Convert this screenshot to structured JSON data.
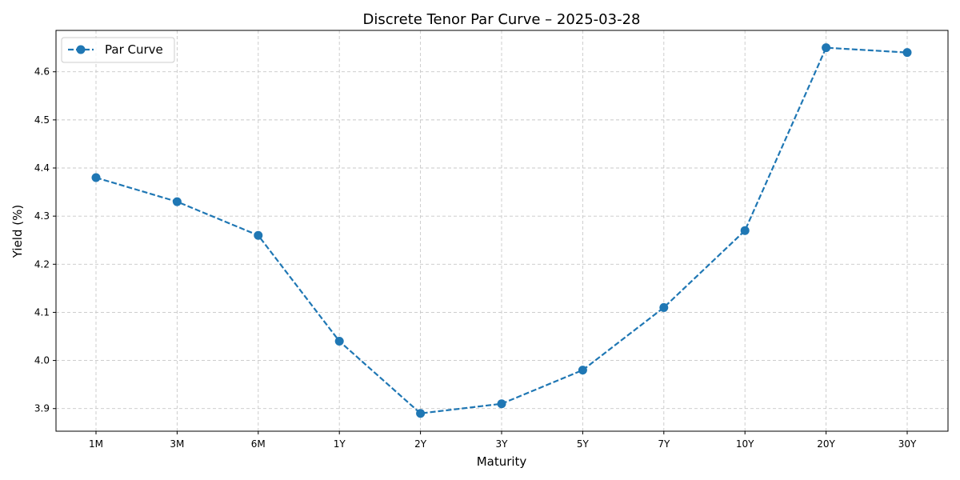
{
  "chart_data": {
    "type": "line",
    "title": "Discrete Tenor Par Curve – 2025-03-28",
    "xlabel": "Maturity",
    "ylabel": "Yield (%)",
    "categories": [
      "1M",
      "3M",
      "6M",
      "1Y",
      "2Y",
      "3Y",
      "5Y",
      "7Y",
      "10Y",
      "20Y",
      "30Y"
    ],
    "series": [
      {
        "name": "Par Curve",
        "values": [
          4.38,
          4.33,
          4.26,
          4.04,
          3.89,
          3.91,
          3.98,
          4.11,
          4.27,
          4.65,
          4.64
        ],
        "color": "#1f77b4",
        "line_style": "dashed",
        "marker": "circle"
      }
    ],
    "ylim": [
      3.853,
      4.686
    ],
    "yticks": [
      "3.9",
      "4.0",
      "4.1",
      "4.2",
      "4.3",
      "4.4",
      "4.5",
      "4.6"
    ],
    "grid": true,
    "legend_position": "top-left"
  }
}
